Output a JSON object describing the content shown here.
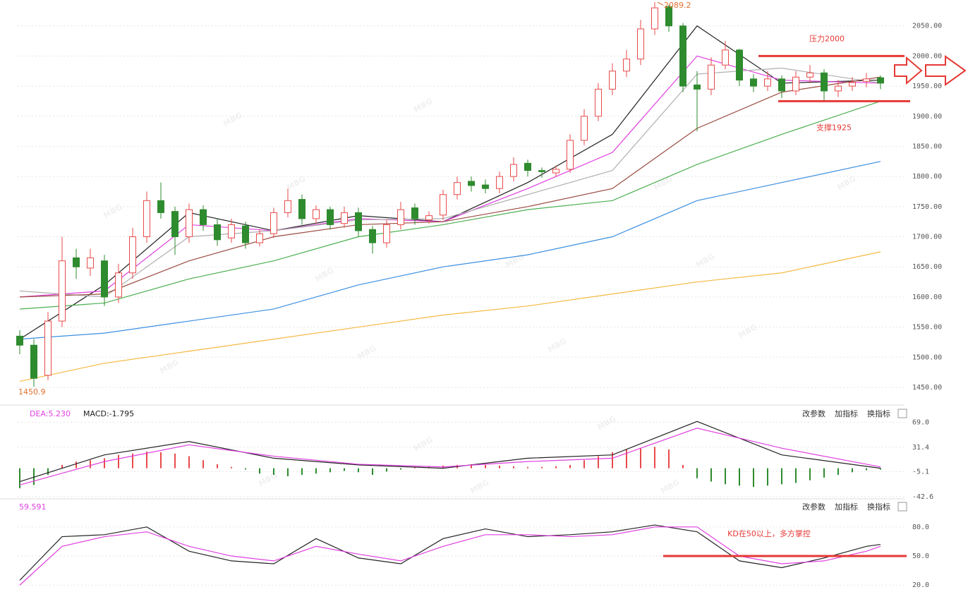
{
  "watermark": "MBG",
  "chart_data": [
    {
      "type": "candlestick",
      "up_color": "#e84a4a",
      "down_color": "#2e8b2e",
      "grid": true,
      "ylim": [
        1423,
        2093
      ],
      "yticks": [
        {
          "value": 1450,
          "label": "1450.00"
        },
        {
          "value": 1500,
          "label": "1500.00"
        },
        {
          "value": 1550,
          "label": "1550.00"
        },
        {
          "value": 1600,
          "label": "1600.00"
        },
        {
          "value": 1650,
          "label": "1650.00"
        },
        {
          "value": 1700,
          "label": "1700.00"
        },
        {
          "value": 1750,
          "label": "1750.00"
        },
        {
          "value": 1800,
          "label": "1800.00"
        },
        {
          "value": 1850,
          "label": "1850.00"
        },
        {
          "value": 1900,
          "label": "1900.00"
        },
        {
          "value": 1950,
          "label": "1950.00"
        },
        {
          "value": 2000,
          "label": "2000.00"
        },
        {
          "value": 2050,
          "label": "2050.00"
        }
      ],
      "open": [
        1535,
        1520,
        1470,
        1560,
        1665,
        1648,
        1660,
        1600,
        1640,
        1700,
        1760,
        1742,
        1700,
        1745,
        1720,
        1698,
        1718,
        1690,
        1705,
        1740,
        1762,
        1730,
        1745,
        1722,
        1740,
        1712,
        1690,
        1720,
        1748,
        1728,
        1736,
        1770,
        1792,
        1786,
        1780,
        1800,
        1822,
        1810,
        1806,
        1812,
        1860,
        1900,
        1945,
        1975,
        1995,
        2045,
        2082,
        2050,
        1952,
        1945,
        1985,
        2010,
        1962,
        1950,
        1962,
        1942,
        1965,
        1972,
        1942,
        1950,
        1958,
        1964
      ],
      "high": [
        1545,
        1530,
        1575,
        1700,
        1680,
        1680,
        1670,
        1655,
        1715,
        1775,
        1790,
        1750,
        1755,
        1752,
        1730,
        1730,
        1725,
        1712,
        1748,
        1780,
        1770,
        1752,
        1750,
        1750,
        1748,
        1718,
        1728,
        1758,
        1755,
        1742,
        1778,
        1800,
        1800,
        1795,
        1808,
        1832,
        1828,
        1815,
        1818,
        1870,
        1912,
        1955,
        1988,
        2010,
        2060,
        2089.2,
        2085,
        2055,
        1975,
        1998,
        2025,
        2012,
        1970,
        1975,
        1968,
        1975,
        1985,
        1978,
        1960,
        1965,
        1972,
        1968
      ],
      "low": [
        1505,
        1450.9,
        1462,
        1550,
        1630,
        1635,
        1585,
        1590,
        1630,
        1690,
        1730,
        1670,
        1690,
        1710,
        1685,
        1690,
        1680,
        1684,
        1698,
        1732,
        1720,
        1722,
        1712,
        1715,
        1700,
        1672,
        1682,
        1712,
        1720,
        1722,
        1728,
        1762,
        1775,
        1772,
        1772,
        1792,
        1800,
        1798,
        1800,
        1806,
        1852,
        1892,
        1935,
        1965,
        1985,
        2035,
        2040,
        1940,
        1875,
        1935,
        1978,
        1950,
        1940,
        1942,
        1930,
        1935,
        1955,
        1925,
        1932,
        1942,
        1948,
        1945
      ],
      "close": [
        1520,
        1465,
        1560,
        1660,
        1650,
        1665,
        1600,
        1640,
        1700,
        1760,
        1740,
        1700,
        1745,
        1720,
        1695,
        1720,
        1690,
        1705,
        1740,
        1760,
        1730,
        1745,
        1720,
        1740,
        1710,
        1690,
        1720,
        1745,
        1730,
        1735,
        1770,
        1790,
        1785,
        1780,
        1800,
        1820,
        1810,
        1808,
        1812,
        1860,
        1900,
        1945,
        1975,
        1995,
        2045,
        2080,
        2050,
        1950,
        1945,
        1985,
        2010,
        1960,
        1950,
        1962,
        1942,
        1965,
        1972,
        1942,
        1950,
        1956,
        1962,
        1955
      ],
      "high_label": "2089.2",
      "low_label": "1450.9",
      "line_x": [
        0,
        6,
        12,
        18,
        24,
        30,
        36,
        42,
        48,
        54,
        61
      ],
      "lines": [
        {
          "color": "#222222",
          "values": [
            1530,
            1620,
            1740,
            1710,
            1735,
            1725,
            1790,
            1870,
            2050,
            1955,
            1960
          ]
        },
        {
          "color": "#e040e0",
          "values": [
            1600,
            1610,
            1720,
            1710,
            1730,
            1725,
            1780,
            1840,
            2000,
            1960,
            1955
          ]
        },
        {
          "color": "#b0b0b0",
          "values": [
            1610,
            1600,
            1700,
            1710,
            1728,
            1730,
            1770,
            1810,
            1970,
            1980,
            1955
          ]
        },
        {
          "color": "#9a4a40",
          "values": [
            1600,
            1605,
            1660,
            1700,
            1720,
            1725,
            1750,
            1780,
            1880,
            1940,
            1965
          ]
        },
        {
          "color": "#4caf50",
          "values": [
            1580,
            1590,
            1630,
            1660,
            1700,
            1720,
            1745,
            1760,
            1820,
            1870,
            1925
          ]
        },
        {
          "color": "#3b8fe0",
          "values": [
            1530,
            1540,
            1560,
            1580,
            1620,
            1650,
            1670,
            1700,
            1760,
            1790,
            1825
          ]
        },
        {
          "color": "#f5b942",
          "values": [
            1460,
            1490,
            1510,
            1530,
            1550,
            1570,
            1585,
            1605,
            1625,
            1640,
            1675
          ]
        }
      ],
      "annotations": [
        {
          "text": "压力2000",
          "value": 2000
        },
        {
          "text": "支撑1925",
          "value": 1925
        }
      ]
    },
    {
      "type": "macd",
      "dea_label": "DEA:5.230",
      "macd_label": "MACD:-1.795",
      "buttons": [
        "改参数",
        "加指标",
        "换指标"
      ],
      "ylim": [
        -43.7,
        90.4
      ],
      "yticks": [
        {
          "value": 69,
          "label": "69.0"
        },
        {
          "value": 31.4,
          "label": "31.4"
        },
        {
          "value": -5.1,
          "label": "-5.1"
        },
        {
          "value": -42.6,
          "label": "-42.6"
        }
      ],
      "hist": [
        -30,
        -25,
        -10,
        5,
        10,
        12,
        15,
        20,
        22,
        25,
        24,
        22,
        18,
        12,
        6,
        2,
        -2,
        -8,
        -10,
        -12,
        -10,
        -8,
        -6,
        -4,
        -6,
        -10,
        -5,
        -2,
        2,
        3,
        4,
        5,
        6,
        5,
        4,
        3,
        2,
        2,
        3,
        5,
        12,
        18,
        24,
        28,
        30,
        32,
        28,
        5,
        -15,
        -20,
        -24,
        -26,
        -28,
        -26,
        -24,
        -22,
        -18,
        -14,
        -10,
        -6,
        -3,
        -2
      ],
      "line_x": [
        0,
        6,
        12,
        18,
        24,
        30,
        36,
        42,
        48,
        54,
        61
      ],
      "lines": [
        {
          "color": "#222222",
          "values": [
            -20,
            20,
            40,
            15,
            5,
            0,
            15,
            20,
            70,
            20,
            0
          ]
        },
        {
          "color": "#e040e0",
          "values": [
            -25,
            10,
            35,
            18,
            6,
            2,
            10,
            15,
            60,
            30,
            2
          ]
        }
      ]
    },
    {
      "type": "kd",
      "k_label": "59.591",
      "buttons": [
        "改参数",
        "加指标",
        "换指标"
      ],
      "ylim": [
        12.9,
        106.8
      ],
      "yticks": [
        {
          "value": 80,
          "label": "80.0"
        },
        {
          "value": 50,
          "label": "50.0"
        },
        {
          "value": 20,
          "label": "20.0"
        }
      ],
      "line_x": [
        0,
        3,
        6,
        9,
        12,
        15,
        18,
        21,
        24,
        27,
        30,
        33,
        36,
        39,
        42,
        45,
        48,
        51,
        54,
        57,
        60,
        61
      ],
      "lines": [
        {
          "color": "#222222",
          "values": [
            25,
            70,
            72,
            80,
            55,
            45,
            42,
            68,
            48,
            42,
            68,
            78,
            70,
            72,
            75,
            82,
            75,
            45,
            38,
            48,
            60,
            62
          ]
        },
        {
          "color": "#e040e0",
          "values": [
            20,
            60,
            70,
            75,
            60,
            50,
            45,
            60,
            52,
            45,
            60,
            72,
            72,
            70,
            72,
            80,
            80,
            50,
            42,
            45,
            55,
            60
          ]
        }
      ],
      "annotations": [
        {
          "text": "KD在50以上，多方掌控",
          "value": 50
        }
      ]
    }
  ]
}
